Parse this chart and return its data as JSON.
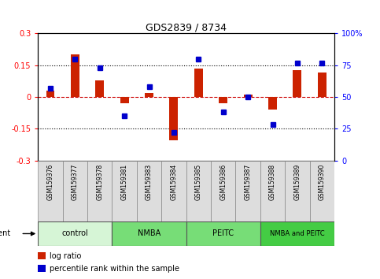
{
  "title": "GDS2839 / 8734",
  "samples": [
    "GSM159376",
    "GSM159377",
    "GSM159378",
    "GSM159381",
    "GSM159383",
    "GSM159384",
    "GSM159385",
    "GSM159386",
    "GSM159387",
    "GSM159388",
    "GSM159389",
    "GSM159390"
  ],
  "log_ratio": [
    0.03,
    0.2,
    0.08,
    -0.03,
    0.02,
    -0.205,
    0.135,
    -0.03,
    0.01,
    -0.06,
    0.125,
    0.115
  ],
  "percentile_rank": [
    57,
    80,
    73,
    35,
    58,
    22,
    80,
    38,
    50,
    28,
    77,
    77
  ],
  "groups": [
    {
      "label": "control",
      "start": 0,
      "end": 3,
      "color": "#d6f5d6"
    },
    {
      "label": "NMBA",
      "start": 3,
      "end": 6,
      "color": "#77dd77"
    },
    {
      "label": "PEITC",
      "start": 6,
      "end": 9,
      "color": "#77dd77"
    },
    {
      "label": "NMBA and PEITC",
      "start": 9,
      "end": 12,
      "color": "#44cc44"
    }
  ],
  "ylim_left": [
    -0.3,
    0.3
  ],
  "ylim_right": [
    0,
    100
  ],
  "yticks_left": [
    -0.3,
    -0.15,
    0,
    0.15,
    0.3
  ],
  "yticks_right": [
    0,
    25,
    50,
    75,
    100
  ],
  "ytick_labels_left": [
    "-0.3",
    "-0.15",
    "0",
    "0.15",
    "0.3"
  ],
  "ytick_labels_right": [
    "0",
    "25",
    "50",
    "75",
    "100%"
  ],
  "hlines": [
    0.15,
    -0.15
  ],
  "bar_color": "#cc2200",
  "dot_color": "#0000cc",
  "zero_line_color": "#cc0000",
  "group_colors": [
    "#d6f5d6",
    "#77dd77",
    "#77dd77",
    "#44cc44"
  ],
  "bar_width": 0.35,
  "legend_items": [
    {
      "color": "#cc2200",
      "label": "log ratio"
    },
    {
      "color": "#0000cc",
      "label": "percentile rank within the sample"
    }
  ]
}
